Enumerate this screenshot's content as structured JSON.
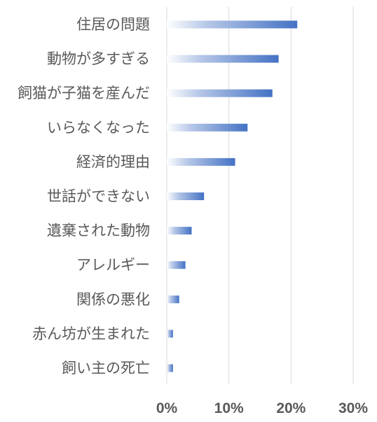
{
  "chart_data": {
    "type": "bar",
    "orientation": "horizontal",
    "categories": [
      "住居の問題",
      "動物が多すぎる",
      "飼猫が子猫を産んだ",
      "いらなくなった",
      "経済的理由",
      "世話ができない",
      "遺棄された動物",
      "アレルギー",
      "関係の悪化",
      "赤ん坊が生まれた",
      "飼い主の死亡"
    ],
    "values": [
      21,
      18,
      17,
      13,
      11,
      6,
      4,
      3,
      2,
      1,
      1
    ],
    "x_ticks": [
      {
        "value": 0,
        "label": "0%"
      },
      {
        "value": 10,
        "label": "10%"
      },
      {
        "value": 20,
        "label": "20%"
      },
      {
        "value": 30,
        "label": "30%"
      }
    ],
    "xlim": [
      0,
      30
    ],
    "grid": "vertical",
    "legend": "none",
    "title": "",
    "xlabel": "",
    "ylabel": "",
    "colors": {
      "bar_start": "#ffffff",
      "bar_end": "#4472c4",
      "text": "#595959",
      "grid": "#d9d9d9"
    }
  }
}
